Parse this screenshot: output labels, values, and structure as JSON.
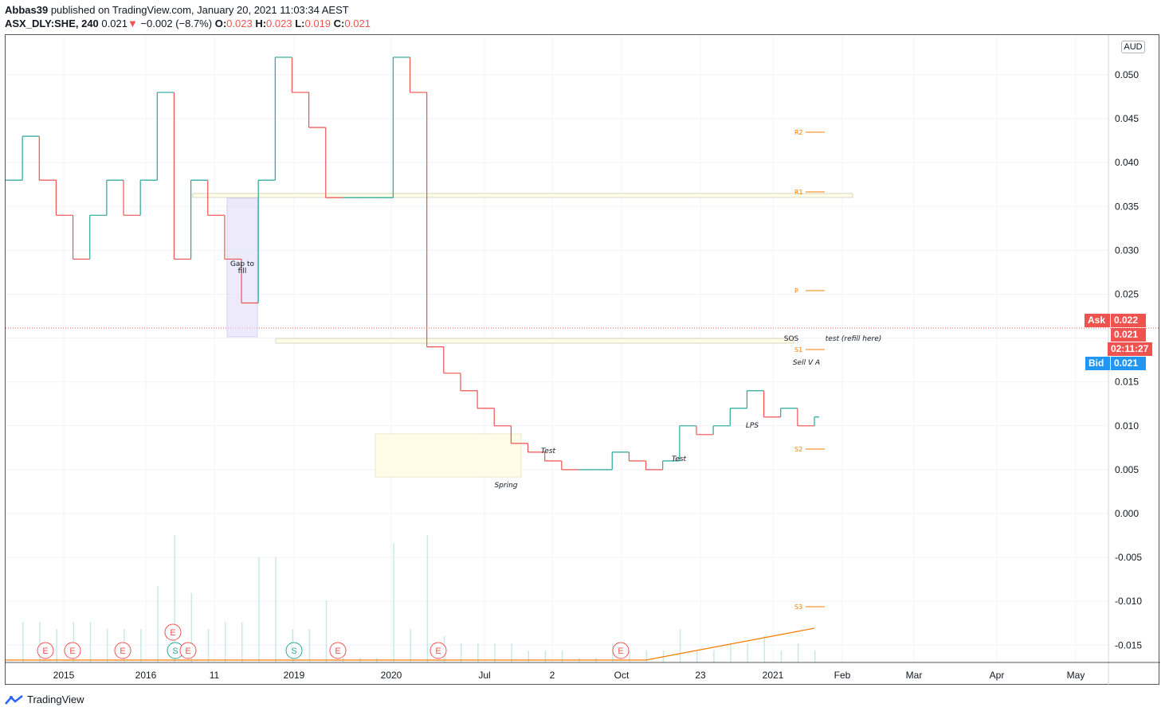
{
  "header": {
    "author": "Abbas39",
    "published_text": "published on TradingView.com, January 20, 2021 11:03:34 AEST",
    "symbol": "ASX_DLY:SHE, 240",
    "last": "0.021",
    "change_arrow": "▼",
    "change": "−0.002 (−8.7%)",
    "o_label": "O:",
    "o_value": "0.023",
    "h_label": "H:",
    "h_value": "0.023",
    "l_label": "L:",
    "l_value": "0.019",
    "c_label": "C:",
    "c_value": "0.021"
  },
  "currency": "AUD",
  "price_badges": {
    "ask_label": "Ask",
    "ask_value": "0.022",
    "last_value": "0.021",
    "countdown": "02:11:27",
    "bid_label": "Bid",
    "bid_value": "0.021"
  },
  "footer": {
    "brand": "TradingView"
  },
  "colors": {
    "up": "#26a69a",
    "down": "#ef5350",
    "ma": "#f57c00",
    "bid": "#2196f3",
    "ask": "#ef5350"
  },
  "chart_data": {
    "type": "line",
    "title": "ASX_DLY:SHE, 240",
    "ylim": [
      -0.017,
      0.055
    ],
    "y_ticks": [
      "0.050",
      "0.045",
      "0.040",
      "0.035",
      "0.030",
      "0.025",
      "0.020",
      "0.015",
      "0.010",
      "0.005",
      "0.000",
      "-0.005",
      "-0.010",
      "-0.015"
    ],
    "x_ticks": [
      "2015",
      "2016",
      "11",
      "2019",
      "2020",
      "Jul",
      "2",
      "Oct",
      "23",
      "2021",
      "Feb",
      "Mar",
      "Apr",
      "May"
    ],
    "series": [
      {
        "name": "Price (step)",
        "x": [
          0,
          5,
          10,
          15,
          20,
          25,
          30,
          35,
          40,
          45,
          50,
          55,
          60,
          65,
          70,
          75,
          80,
          85,
          90,
          95,
          100,
          105,
          110,
          115,
          120,
          125,
          130,
          135,
          140,
          145,
          150,
          155,
          160,
          165,
          170,
          175,
          180,
          185,
          190,
          195,
          200,
          205,
          210,
          215,
          220,
          225,
          230,
          235,
          240
        ],
        "values": [
          0.038,
          0.043,
          0.038,
          0.034,
          0.029,
          0.034,
          0.038,
          0.034,
          0.038,
          0.048,
          0.029,
          0.038,
          0.034,
          0.029,
          0.024,
          0.038,
          0.052,
          0.048,
          0.044,
          0.036,
          0.036,
          0.036,
          0.036,
          0.052,
          0.048,
          0.019,
          0.016,
          0.014,
          0.012,
          0.01,
          0.008,
          0.007,
          0.006,
          0.005,
          0.005,
          0.005,
          0.007,
          0.006,
          0.005,
          0.006,
          0.01,
          0.009,
          0.01,
          0.012,
          0.014,
          0.011,
          0.012,
          0.01,
          0.011
        ]
      }
    ],
    "annotations": [
      {
        "text": "Gap to fill"
      },
      {
        "text": "Spring"
      },
      {
        "text": "Test"
      },
      {
        "text": "Test"
      },
      {
        "text": "LPS"
      },
      {
        "text": "SOS"
      },
      {
        "text": "Sell V A"
      },
      {
        "text": "test (refill here)"
      }
    ],
    "pivots": [
      "R2",
      "R1",
      "P",
      "S1",
      "S2",
      "S3"
    ],
    "event_markers": [
      "E",
      "E",
      "E",
      "S",
      "E",
      "S",
      "E",
      "E",
      "E",
      "E"
    ]
  }
}
